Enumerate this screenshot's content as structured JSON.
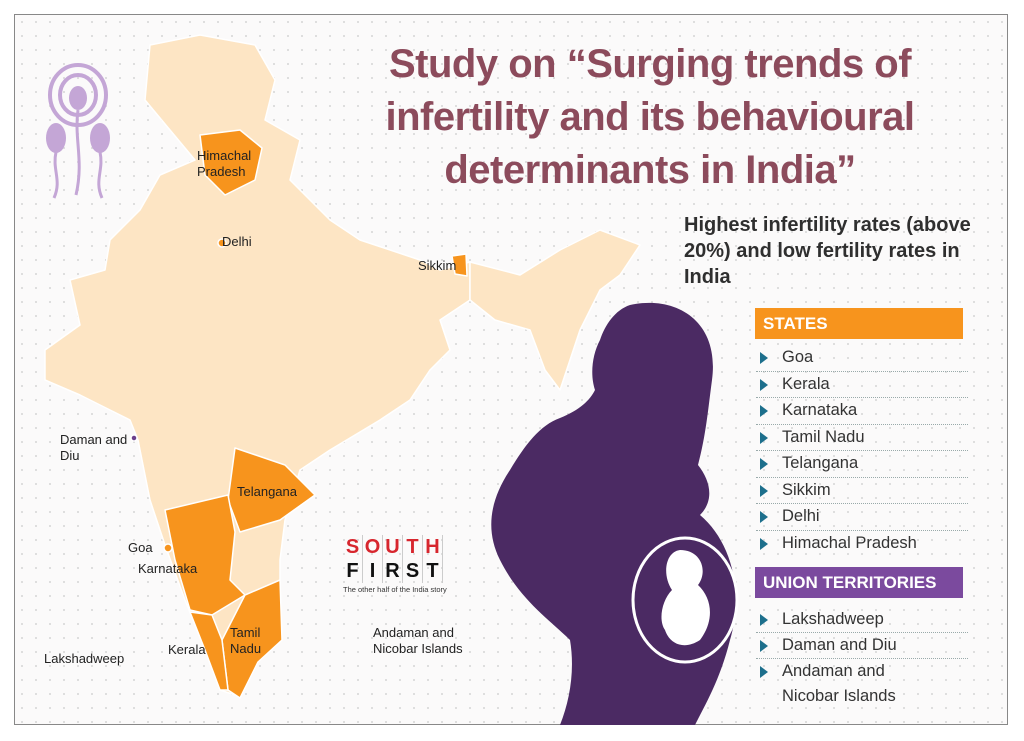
{
  "title": {
    "line1": "Study on “Surging trends of",
    "line2": "infertility and its behavioural",
    "line3": "determinants in India”"
  },
  "subtitle": "Highest infertility rates (above 20%) and low fertility rates in India",
  "states": {
    "header": "STATES",
    "items": [
      "Goa",
      "Kerala",
      "Karnataka",
      "Tamil Nadu",
      "Telangana",
      "Sikkim",
      "Delhi",
      "Himachal Pradesh"
    ]
  },
  "union_territories": {
    "header": "UNION TERRITORIES",
    "items": [
      "Lakshadweep",
      "Daman and Diu",
      "Andaman and Nicobar Islands"
    ]
  },
  "map_labels": {
    "himachal": "Himachal Pradesh",
    "delhi": "Delhi",
    "sikkim": "Sikkim",
    "daman": "Daman and Diu",
    "telangana": "Telangana",
    "goa": "Goa",
    "karnataka": "Karnataka",
    "tamil_nadu": "Tamil Nadu",
    "kerala": "Kerala",
    "lakshadweep": "Lakshadweep",
    "andaman": "Andaman and Nicobar Islands"
  },
  "logo": {
    "line1": "SOUTH",
    "line2": "FIRST",
    "tagline": "The other half of the India story"
  },
  "colors": {
    "title": "#8c4b5c",
    "highlight_orange": "#f7941d",
    "map_base": "#fde5c4",
    "silhouette_purple": "#4b2a63",
    "ut_header": "#7b4a9e",
    "bullet": "#1d6f8c"
  },
  "icons": [
    "sperm-icon",
    "arrow-bullet-icon",
    "pregnant-woman-silhouette"
  ]
}
